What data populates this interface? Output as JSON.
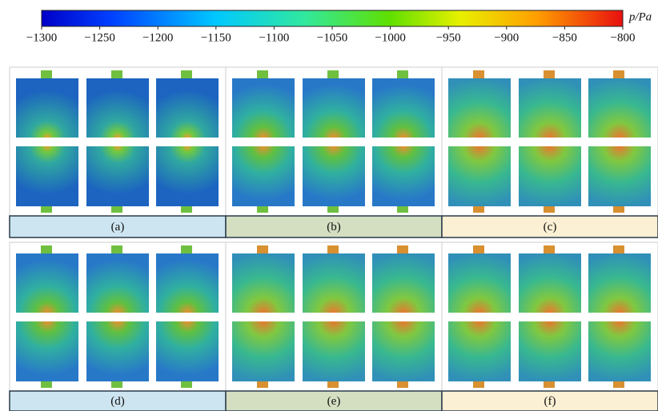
{
  "colorbar": {
    "label": "p/Pa",
    "lim": [
      -1300,
      -800
    ],
    "ticks": [
      {
        "value": -1300,
        "label": "−1300"
      },
      {
        "value": -1250,
        "label": "−1250"
      },
      {
        "value": -1200,
        "label": "−1200"
      },
      {
        "value": -1150,
        "label": "−1150"
      },
      {
        "value": -1100,
        "label": "−1100"
      },
      {
        "value": -1050,
        "label": "−1050"
      },
      {
        "value": -1000,
        "label": "−1000"
      },
      {
        "value": -950,
        "label": "−950"
      },
      {
        "value": -900,
        "label": "−900"
      },
      {
        "value": -850,
        "label": "−850"
      },
      {
        "value": -800,
        "label": "−800"
      }
    ]
  },
  "panels": [
    {
      "label": "(a)",
      "color": "#cde5f0"
    },
    {
      "label": "(b)",
      "color": "#d4dfc2"
    },
    {
      "label": "(c)",
      "color": "#fbefd4"
    },
    {
      "label": "(d)",
      "color": "#cde5f0"
    },
    {
      "label": "(e)",
      "color": "#d4dfc2"
    },
    {
      "label": "(f)",
      "color": "#fbefd4"
    }
  ]
}
